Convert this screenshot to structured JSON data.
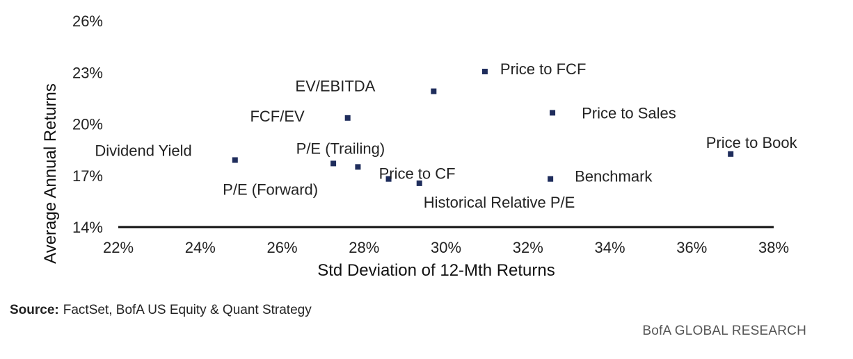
{
  "chart_data": {
    "type": "scatter",
    "xlabel": "Std Deviation of 12-Mth Returns",
    "ylabel": "Average Annual Returns",
    "xlim": [
      22,
      38
    ],
    "ylim": [
      14,
      26
    ],
    "x_ticks": [
      "22%",
      "24%",
      "26%",
      "28%",
      "30%",
      "32%",
      "34%",
      "36%",
      "38%"
    ],
    "y_ticks": [
      "26%",
      "23%",
      "20%",
      "17%",
      "14%"
    ],
    "grid": false,
    "points": [
      {
        "label": "Dividend Yield",
        "x": 24.85,
        "y": 17.9
      },
      {
        "label": "P/E (Forward)",
        "x": 27.25,
        "y": 17.7
      },
      {
        "label": "FCF/EV",
        "x": 27.6,
        "y": 20.35
      },
      {
        "label": "P/E (Trailing)",
        "x": 27.85,
        "y": 17.5
      },
      {
        "label": "Price to CF",
        "x": 28.6,
        "y": 16.8
      },
      {
        "label": "Historical Relative P/E",
        "x": 29.35,
        "y": 16.55
      },
      {
        "label": "EV/EBITDA",
        "x": 29.7,
        "y": 21.9
      },
      {
        "label": "Price to FCF",
        "x": 30.95,
        "y": 23.05
      },
      {
        "label": "Price to Sales",
        "x": 32.6,
        "y": 20.65
      },
      {
        "label": "Benchmark",
        "x": 32.55,
        "y": 16.8
      },
      {
        "label": "Price to Book",
        "x": 36.95,
        "y": 18.25
      }
    ],
    "marker_color": "#1f2d5c",
    "axis_color": "#111111"
  },
  "footer": {
    "source_label": "Source:",
    "source_text": "FactSet, BofA US Equity & Quant Strategy",
    "brand": "BofA GLOBAL RESEARCH"
  }
}
